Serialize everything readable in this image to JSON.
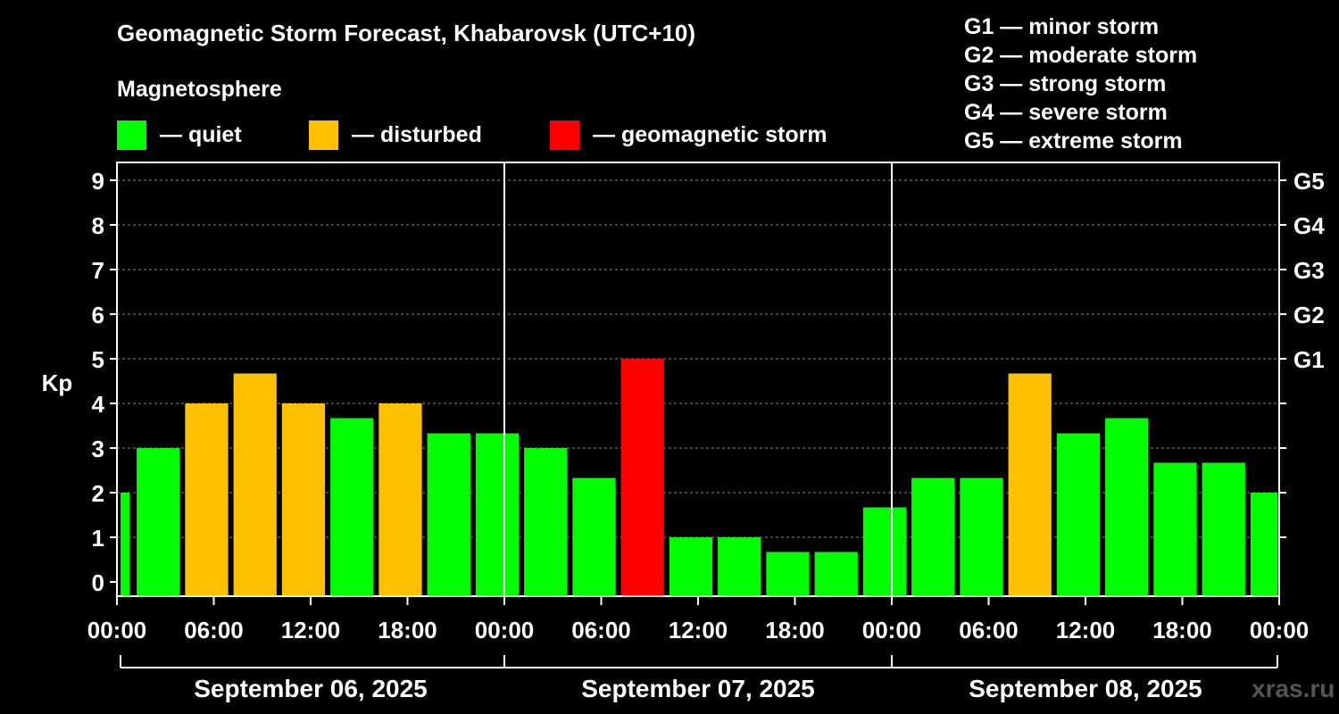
{
  "title": "Geomagnetic Storm Forecast, Khabarovsk (UTC+10)",
  "magnetosphere_label": "Magnetosphere",
  "legend": [
    {
      "label": "— quiet",
      "color": "#00ff00"
    },
    {
      "label": "— disturbed",
      "color": "#ffc000"
    },
    {
      "label": "— geomagnetic storm",
      "color": "#ff0000"
    }
  ],
  "g_scale": [
    "G1 — minor storm",
    "G2 — moderate storm",
    "G3 — strong storm",
    "G4 — severe storm",
    "G5 — extreme storm"
  ],
  "watermark": "xras.ru",
  "chart_data": {
    "type": "bar",
    "ylabel": "Kp",
    "ylim": [
      0,
      9
    ],
    "yticks": [
      "0",
      "1",
      "2",
      "3",
      "4",
      "5",
      "6",
      "7",
      "8",
      "9"
    ],
    "g_ticks": [
      {
        "kp": 5,
        "label": "G1"
      },
      {
        "kp": 6,
        "label": "G2"
      },
      {
        "kp": 7,
        "label": "G3"
      },
      {
        "kp": 8,
        "label": "G4"
      },
      {
        "kp": 9,
        "label": "G5"
      }
    ],
    "grid": "horizontal dashed",
    "xticks": [
      "00:00",
      "06:00",
      "12:00",
      "18:00",
      "00:00",
      "06:00",
      "12:00",
      "18:00",
      "00:00",
      "06:00",
      "12:00",
      "18:00",
      "00:00"
    ],
    "days": [
      "September 06, 2025",
      "September 07, 2025",
      "September 08, 2025"
    ],
    "colors": {
      "quiet": "#00ff00",
      "disturbed": "#ffc000",
      "storm": "#ff0000"
    },
    "bars": [
      {
        "start": "2025-09-06 00:00",
        "kp": 2.0,
        "level": "quiet"
      },
      {
        "start": "2025-09-06 01:00",
        "kp": 3.0,
        "level": "quiet"
      },
      {
        "start": "2025-09-06 04:00",
        "kp": 4.0,
        "level": "disturbed"
      },
      {
        "start": "2025-09-06 07:00",
        "kp": 4.67,
        "level": "disturbed"
      },
      {
        "start": "2025-09-06 10:00",
        "kp": 4.0,
        "level": "disturbed"
      },
      {
        "start": "2025-09-06 13:00",
        "kp": 3.67,
        "level": "quiet"
      },
      {
        "start": "2025-09-06 16:00",
        "kp": 4.0,
        "level": "disturbed"
      },
      {
        "start": "2025-09-06 19:00",
        "kp": 3.33,
        "level": "quiet"
      },
      {
        "start": "2025-09-06 22:00",
        "kp": 3.33,
        "level": "quiet"
      },
      {
        "start": "2025-09-07 01:00",
        "kp": 3.0,
        "level": "quiet"
      },
      {
        "start": "2025-09-07 04:00",
        "kp": 2.33,
        "level": "quiet"
      },
      {
        "start": "2025-09-07 07:00",
        "kp": 5.0,
        "level": "storm"
      },
      {
        "start": "2025-09-07 10:00",
        "kp": 1.0,
        "level": "quiet"
      },
      {
        "start": "2025-09-07 13:00",
        "kp": 1.0,
        "level": "quiet"
      },
      {
        "start": "2025-09-07 16:00",
        "kp": 0.67,
        "level": "quiet"
      },
      {
        "start": "2025-09-07 19:00",
        "kp": 0.67,
        "level": "quiet"
      },
      {
        "start": "2025-09-07 22:00",
        "kp": 1.67,
        "level": "quiet"
      },
      {
        "start": "2025-09-08 01:00",
        "kp": 2.33,
        "level": "quiet"
      },
      {
        "start": "2025-09-08 04:00",
        "kp": 2.33,
        "level": "quiet"
      },
      {
        "start": "2025-09-08 07:00",
        "kp": 4.67,
        "level": "disturbed"
      },
      {
        "start": "2025-09-08 10:00",
        "kp": 3.33,
        "level": "quiet"
      },
      {
        "start": "2025-09-08 13:00",
        "kp": 3.67,
        "level": "quiet"
      },
      {
        "start": "2025-09-08 16:00",
        "kp": 2.67,
        "level": "quiet"
      },
      {
        "start": "2025-09-08 19:00",
        "kp": 2.67,
        "level": "quiet"
      },
      {
        "start": "2025-09-08 22:00",
        "kp": 2.0,
        "level": "quiet"
      }
    ]
  }
}
